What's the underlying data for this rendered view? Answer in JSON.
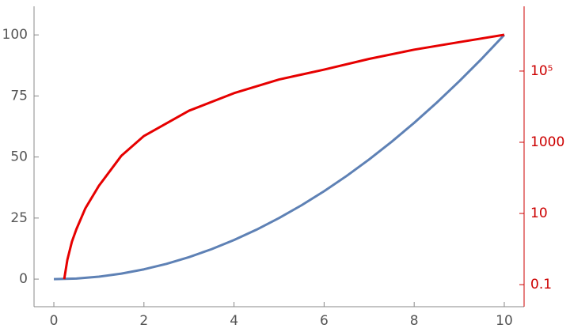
{
  "chart_data": {
    "type": "line",
    "xlim": [
      -0.44,
      10.44
    ],
    "xticks": [
      0,
      2,
      4,
      6,
      8,
      10
    ],
    "ylim": [
      -11.3,
      111.7
    ],
    "yticks": [
      0,
      25,
      50,
      75,
      100
    ],
    "y2lim": [
      0.024,
      6600000
    ],
    "y2scale": "log",
    "y2ticks": [
      0.1,
      10,
      1000,
      {
        "value": 100000,
        "label": "10⁵"
      }
    ],
    "axis_color": "#888888",
    "y2_axis_color": "#cc0000",
    "series": [
      {
        "color": "#5e81b5",
        "x": [
          0,
          0.5,
          1,
          1.5,
          2,
          2.5,
          3,
          3.5,
          4,
          4.5,
          5,
          5.5,
          6,
          6.5,
          7,
          7.5,
          8,
          8.5,
          9,
          9.5,
          10
        ],
        "values": [
          0,
          0.25,
          1,
          2.25,
          4,
          6.25,
          9,
          12.25,
          16,
          20.25,
          25,
          30.25,
          36,
          42.25,
          49,
          56.25,
          64,
          72.25,
          81,
          90.25,
          100
        ]
      },
      {
        "color": "#e60000",
        "axis": "y2",
        "x": [
          0.23,
          0.3,
          0.4,
          0.5,
          0.7,
          1,
          1.5,
          2,
          3,
          4,
          5,
          6,
          7,
          8,
          9,
          10
        ],
        "values": [
          0.143,
          0.5,
          1.6,
          3.6,
          14,
          60,
          420,
          1500,
          7700,
          24000,
          58000,
          110000,
          220000,
          400000,
          650000,
          1050000
        ]
      }
    ]
  }
}
